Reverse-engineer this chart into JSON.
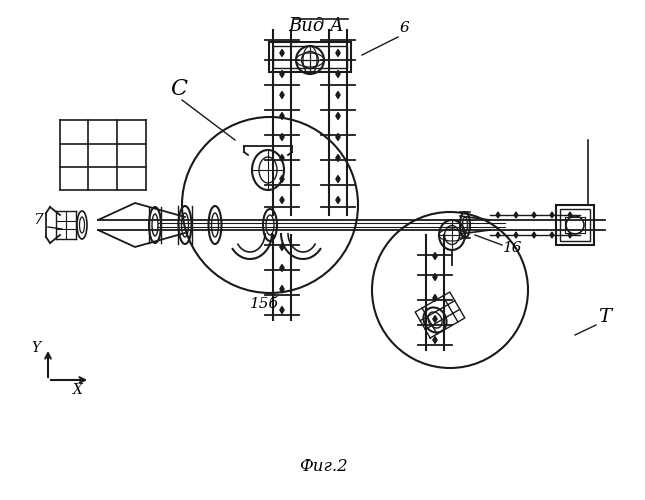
{
  "title": "Фиг.2",
  "label_vid_a": "Вид А",
  "label_c": "С",
  "label_6": "6",
  "label_7": "7",
  "label_15b": "15б",
  "label_16": "16",
  "label_T": "Т",
  "label_x": "X",
  "label_y": "Y",
  "bg_color": "#ffffff",
  "line_color": "#1a1a1a",
  "fig_width": 6.45,
  "fig_height": 5.0,
  "dpi": 100
}
